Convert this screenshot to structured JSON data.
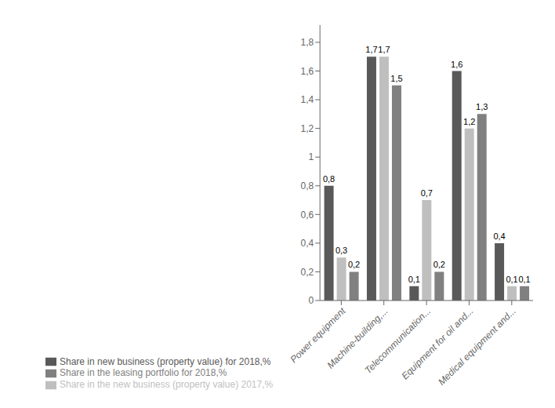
{
  "chart_data": {
    "type": "bar",
    "categories": [
      "Power equipment",
      "Machine-building,...",
      "Telecommunication...",
      "Equipment for oil and...",
      "Medical equipment and..."
    ],
    "series": [
      {
        "name": "Share in new business (property value) for 2018,%",
        "color": "#595959",
        "values": [
          0.8,
          1.7,
          0.1,
          1.6,
          0.4
        ],
        "value_labels": [
          "0,8",
          "1,7",
          "0,1",
          "1,6",
          "0,4"
        ]
      },
      {
        "name": "Share in the new business (property value) 2017,%",
        "color": "#bfbfbf",
        "values": [
          0.3,
          1.7,
          0.7,
          1.2,
          0.1
        ],
        "value_labels": [
          "0,3",
          "1,7",
          "0,7",
          "1,2",
          "0,1"
        ]
      },
      {
        "name": "Share in the leasing portfolio for 2018,%",
        "color": "#808080",
        "values": [
          0.2,
          1.5,
          0.2,
          1.3,
          0.1
        ],
        "value_labels": [
          "0,2",
          "1,5",
          "0,2",
          "1,3",
          "0,1"
        ]
      }
    ],
    "ylim": [
      0,
      1.92
    ],
    "yticks": [
      0,
      {
        "value": 0.2,
        "label": "0,2"
      },
      {
        "value": 0.4,
        "label": "0,4"
      },
      {
        "value": 0.6,
        "label": "0,6"
      },
      {
        "value": 0.8,
        "label": "0,8"
      },
      1,
      {
        "value": 1.2,
        "label": "1,2"
      },
      {
        "value": 1.4,
        "label": "1,4"
      },
      {
        "value": 1.6,
        "label": "1,6"
      },
      {
        "value": 1.8,
        "label": "1,8"
      }
    ],
    "grid": false,
    "legend": "bottom left",
    "data_labels": true
  }
}
